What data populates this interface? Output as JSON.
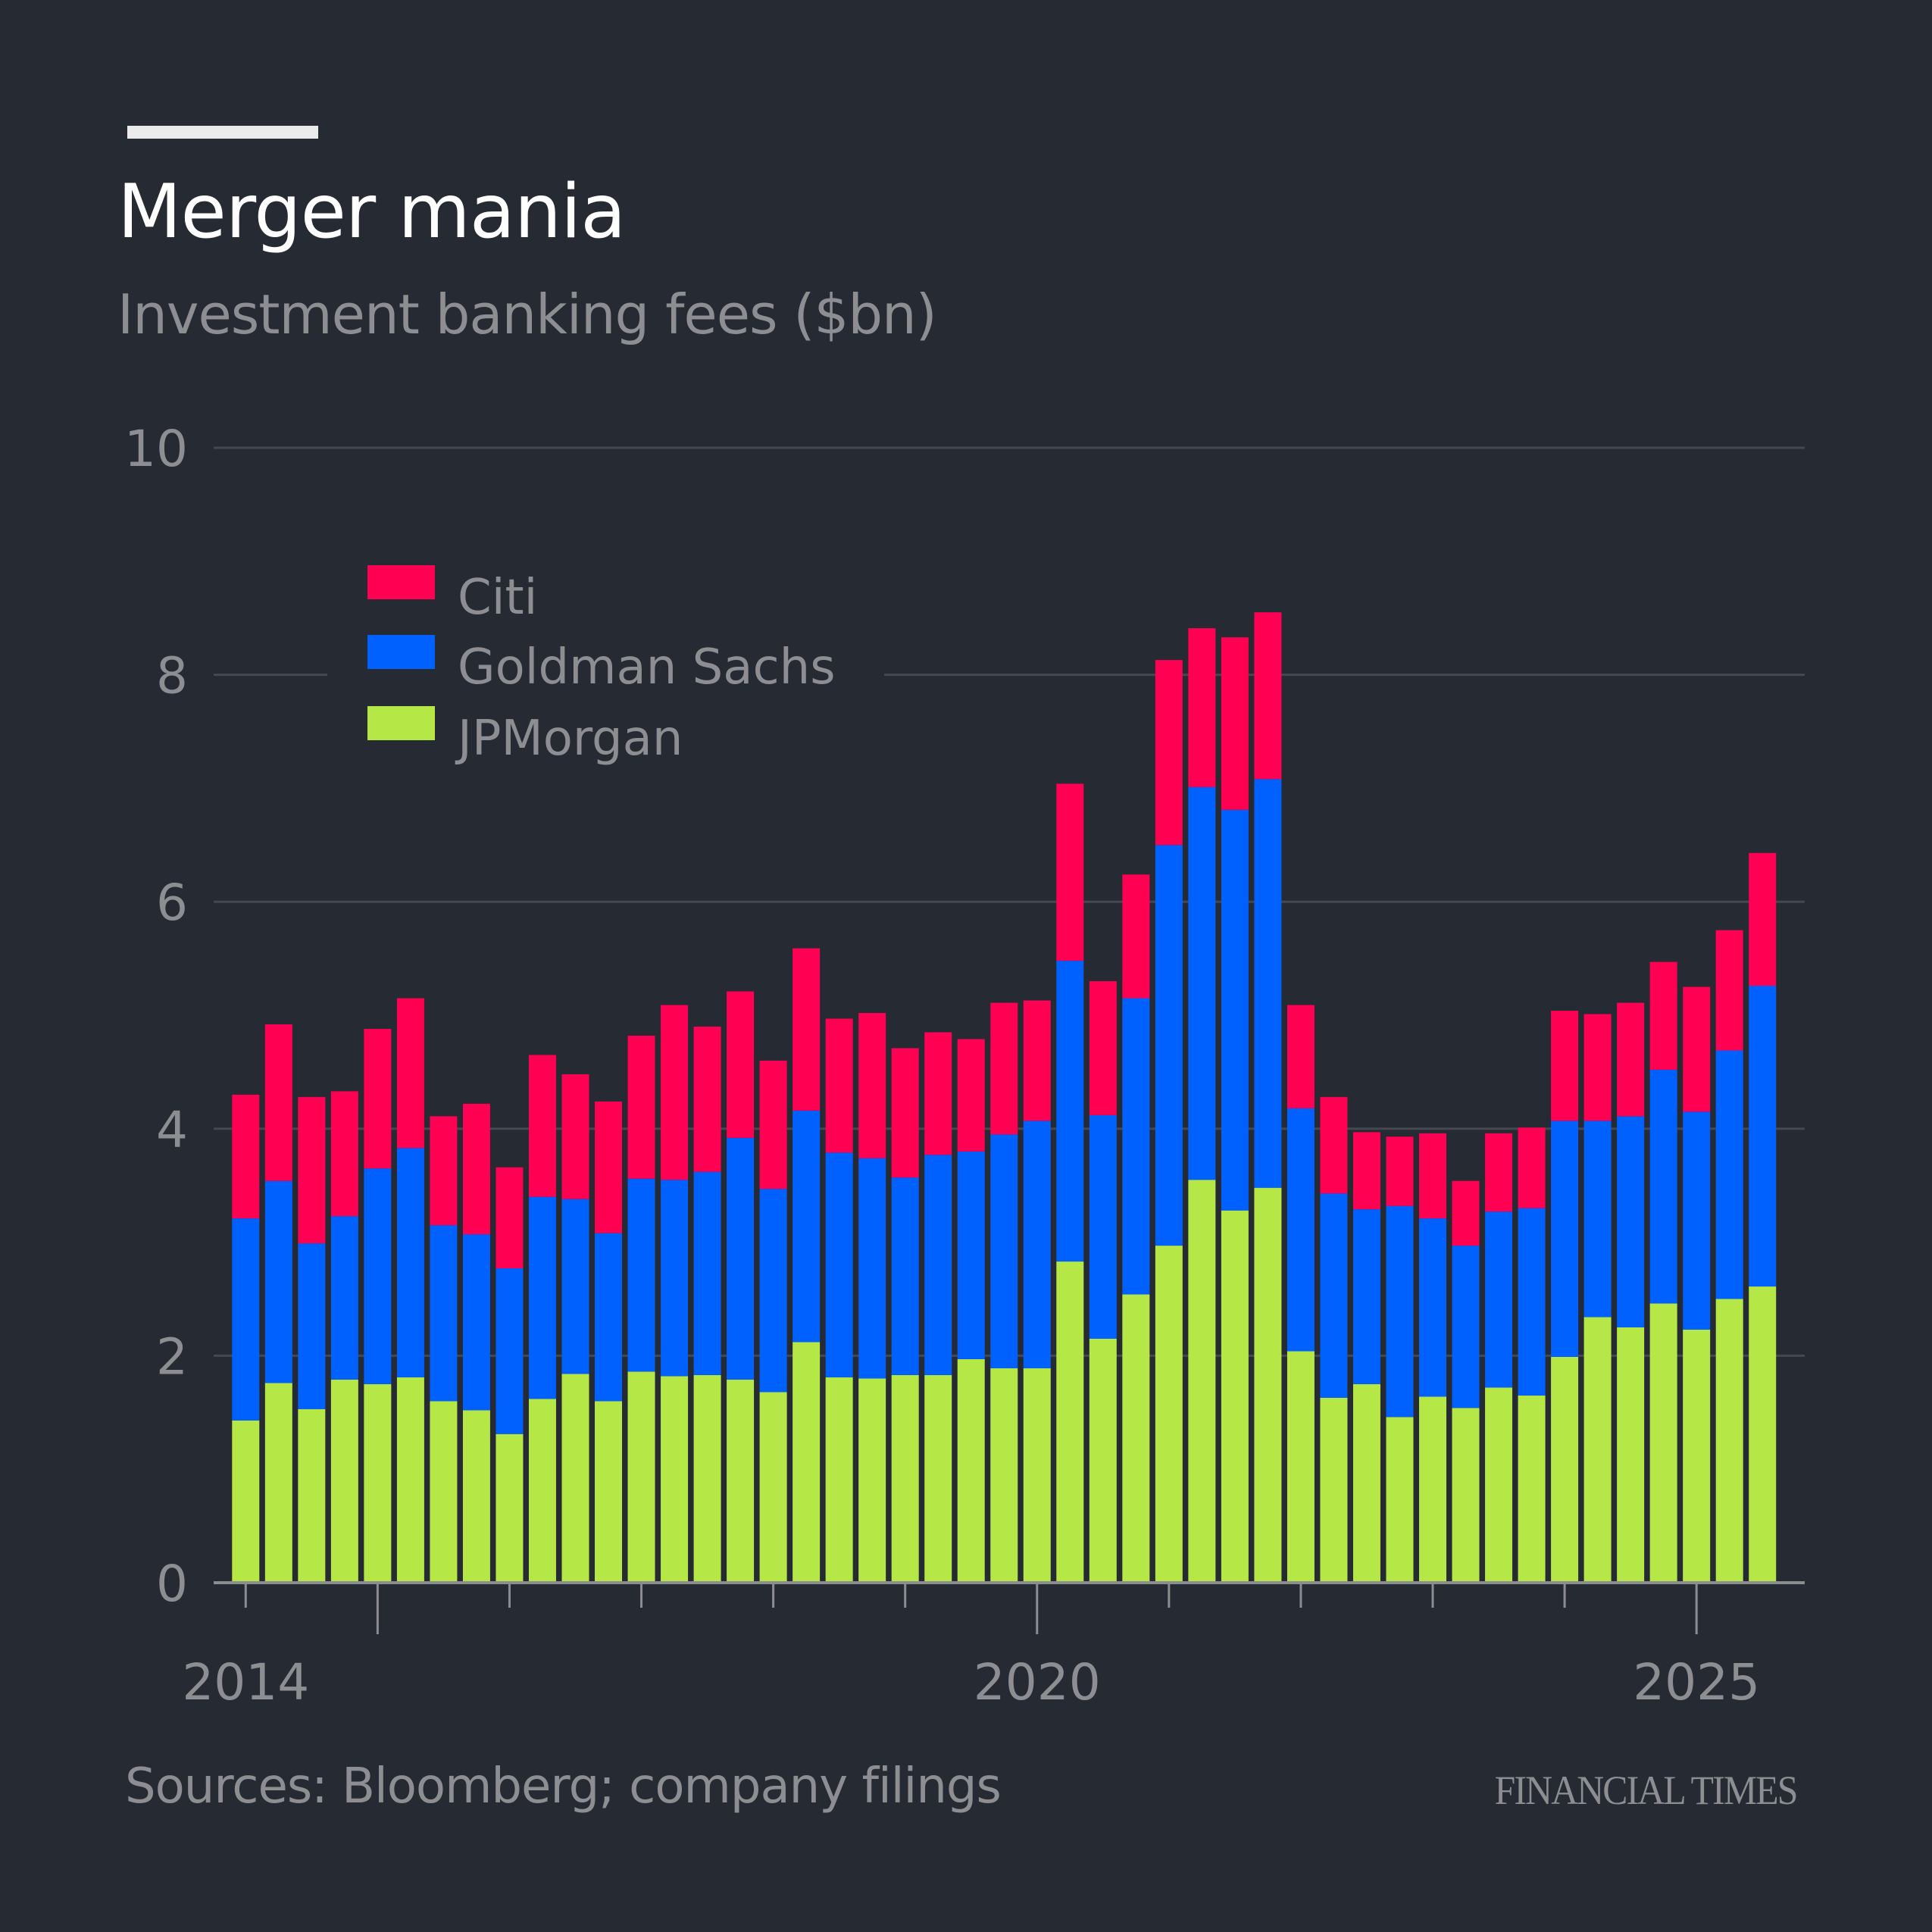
{
  "header": {
    "title": "Merger mania",
    "subtitle": "Investment banking fees ($bn)"
  },
  "footer": {
    "source": "Sources: Bloomberg; company filings",
    "brand": "FINANCIAL TIMES"
  },
  "colors": {
    "background": "#262a33",
    "citi": "#ff0052",
    "goldman": "#0061ff",
    "jpmorgan": "#b5e746",
    "text_muted": "#8c8e92",
    "gridline": "#45484f",
    "axis": "#8c8d91"
  },
  "chart_data": {
    "type": "bar",
    "stacked": true,
    "title": "Merger mania",
    "subtitle": "Investment banking fees ($bn)",
    "xlabel": "",
    "ylabel": "",
    "ylim": [
      0,
      10
    ],
    "yticks": [
      0,
      2,
      4,
      6,
      8,
      10
    ],
    "grid": true,
    "legend_position": "top-left",
    "x_tick_labels": [
      {
        "label": "2014",
        "index": 0
      },
      {
        "label": "2020",
        "index": 24
      },
      {
        "label": "2025",
        "index": 44
      }
    ],
    "x_major_tick_indices": [
      4,
      24,
      44
    ],
    "x_minor_tick_indices": [
      0,
      8,
      12,
      16,
      20,
      28,
      32,
      36,
      40
    ],
    "categories": [
      "2014 Q1",
      "2014 Q2",
      "2014 Q3",
      "2014 Q4",
      "2015 Q1",
      "2015 Q2",
      "2015 Q3",
      "2015 Q4",
      "2016 Q1",
      "2016 Q2",
      "2016 Q3",
      "2016 Q4",
      "2017 Q1",
      "2017 Q2",
      "2017 Q3",
      "2017 Q4",
      "2018 Q1",
      "2018 Q2",
      "2018 Q3",
      "2018 Q4",
      "2019 Q1",
      "2019 Q2",
      "2019 Q3",
      "2019 Q4",
      "2020 Q1",
      "2020 Q2",
      "2020 Q3",
      "2020 Q4",
      "2021 Q1",
      "2021 Q2",
      "2021 Q3",
      "2021 Q4",
      "2022 Q1",
      "2022 Q2",
      "2022 Q3",
      "2022 Q4",
      "2023 Q1",
      "2023 Q2",
      "2023 Q3",
      "2023 Q4",
      "2024 Q1",
      "2024 Q2",
      "2024 Q3",
      "2024 Q4",
      "2025 Q1",
      "2025 Q2",
      "2025 Q3"
    ],
    "series": [
      {
        "name": "JPMorgan",
        "color": "#b5e746",
        "values": [
          1.43,
          1.76,
          1.53,
          1.79,
          1.75,
          1.81,
          1.6,
          1.52,
          1.31,
          1.62,
          1.84,
          1.6,
          1.86,
          1.82,
          1.83,
          1.79,
          1.68,
          2.12,
          1.81,
          1.8,
          1.83,
          1.83,
          1.97,
          1.89,
          1.89,
          2.83,
          2.15,
          2.54,
          2.97,
          3.55,
          3.28,
          3.48,
          2.04,
          1.63,
          1.75,
          1.46,
          1.64,
          1.54,
          1.72,
          1.65,
          1.99,
          2.34,
          2.25,
          2.46,
          2.23,
          2.5,
          2.61
        ]
      },
      {
        "name": "Goldman Sachs",
        "color": "#0061ff",
        "values": [
          1.78,
          1.78,
          1.46,
          1.44,
          1.9,
          2.02,
          1.55,
          1.55,
          1.46,
          1.78,
          1.54,
          1.48,
          1.7,
          1.73,
          1.79,
          2.13,
          1.79,
          2.04,
          1.98,
          1.94,
          1.74,
          1.94,
          1.83,
          2.06,
          2.18,
          2.65,
          1.97,
          2.61,
          3.53,
          3.46,
          3.53,
          3.6,
          2.14,
          1.8,
          1.54,
          1.86,
          1.57,
          1.43,
          1.55,
          1.65,
          2.08,
          1.73,
          1.86,
          2.06,
          1.92,
          2.19,
          2.65
        ]
      },
      {
        "name": "Citi",
        "color": "#ff0052",
        "values": [
          1.09,
          1.38,
          1.29,
          1.1,
          1.23,
          1.32,
          0.96,
          1.15,
          0.89,
          1.25,
          1.1,
          1.16,
          1.26,
          1.54,
          1.28,
          1.29,
          1.13,
          1.43,
          1.18,
          1.28,
          1.14,
          1.08,
          0.99,
          1.16,
          1.06,
          1.56,
          1.18,
          1.09,
          1.63,
          1.4,
          1.52,
          1.47,
          0.91,
          0.85,
          0.68,
          0.61,
          0.75,
          0.57,
          0.69,
          0.71,
          0.97,
          0.94,
          1.0,
          0.95,
          1.1,
          1.06,
          1.17
        ]
      }
    ],
    "legend": [
      {
        "name": "Citi",
        "color": "#ff0052"
      },
      {
        "name": "Goldman Sachs",
        "color": "#0061ff"
      },
      {
        "name": "JPMorgan",
        "color": "#b5e746"
      }
    ]
  }
}
